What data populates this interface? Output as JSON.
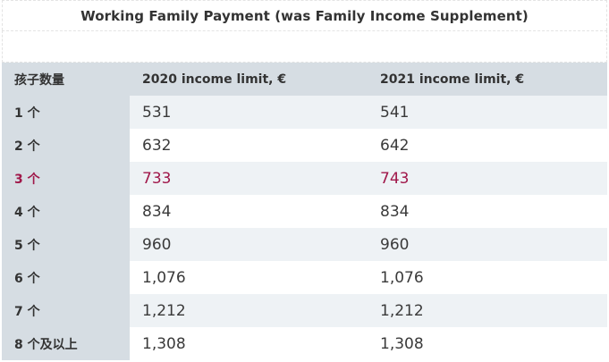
{
  "table": {
    "title": "Working Family Payment (was Family Income Supplement)",
    "headers": [
      "孩子数量",
      "2020 income limit, €",
      "2021 income limit, €"
    ],
    "rows": [
      {
        "children": "1 个",
        "y2020": "531",
        "y2021": "541"
      },
      {
        "children": "2 个",
        "y2020": "632",
        "y2021": "642"
      },
      {
        "children": "3 个",
        "y2020": "733",
        "y2021": "743"
      },
      {
        "children": "4 个",
        "y2020": "834",
        "y2021": "834"
      },
      {
        "children": "5 个",
        "y2020": "960",
        "y2021": "960"
      },
      {
        "children": "6 个",
        "y2020": "1,076",
        "y2021": "1,076"
      },
      {
        "children": "7 个",
        "y2020": "1,212",
        "y2021": "1,212"
      },
      {
        "children": "8 个及以上",
        "y2020": "1,308",
        "y2021": "1,308"
      }
    ],
    "highlight_row_index": 2,
    "highlight_color": "#a0184a",
    "header_bg": "#d6dde3",
    "stripe_bg": "#eef2f5"
  }
}
